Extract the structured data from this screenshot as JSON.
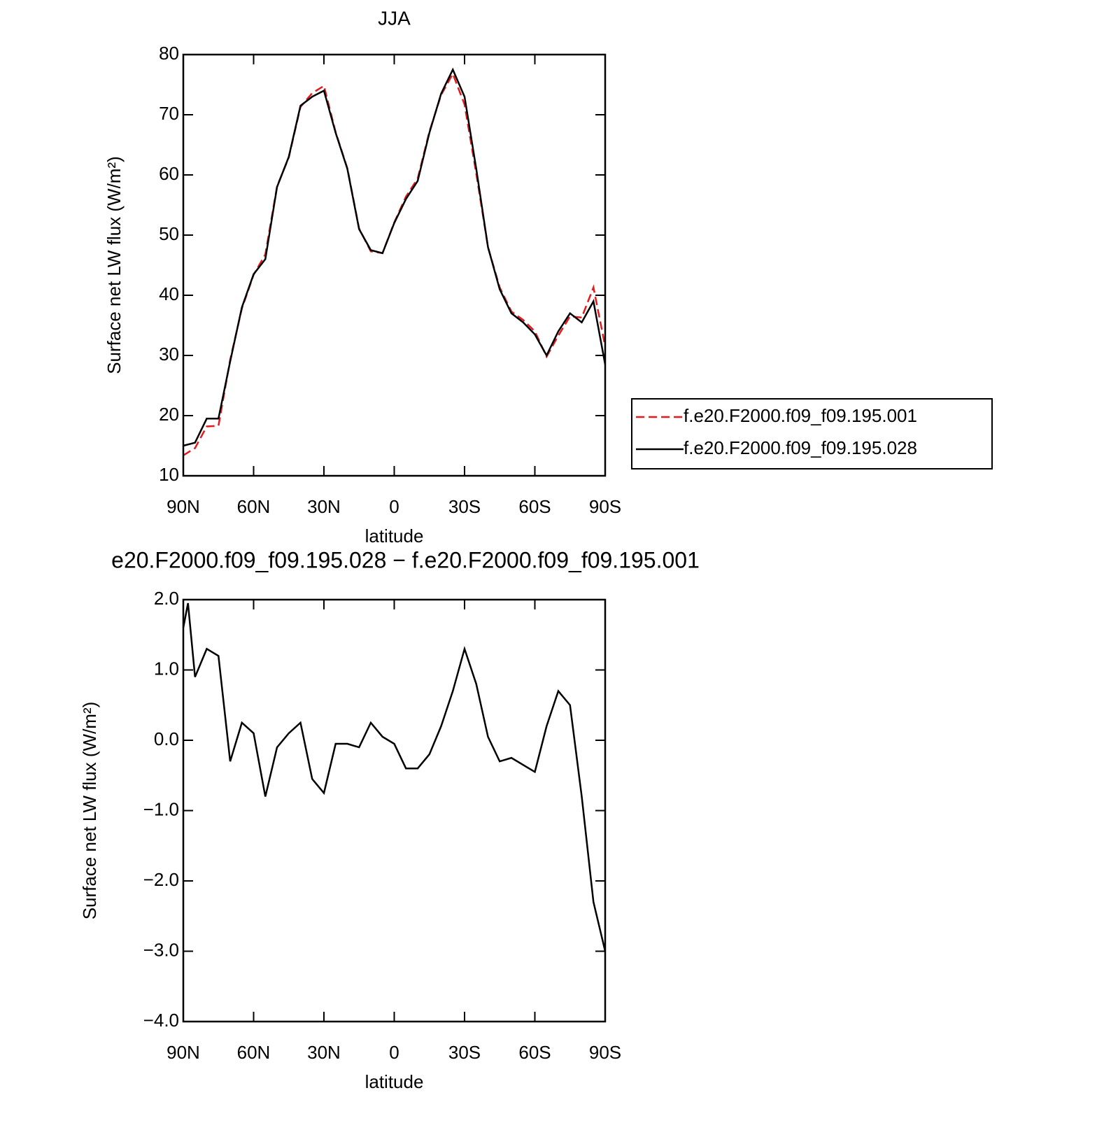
{
  "chart_data": [
    {
      "type": "line",
      "title": "JJA",
      "xlabel": "latitude",
      "ylabel": "Surface net LW flux (W/m²)",
      "x": [
        90,
        85,
        80,
        75,
        70,
        65,
        60,
        55,
        50,
        45,
        40,
        35,
        30,
        25,
        20,
        15,
        10,
        5,
        0,
        -5,
        -10,
        -15,
        -20,
        -25,
        -30,
        -35,
        -40,
        -45,
        -50,
        -55,
        -60,
        -65,
        -70,
        -75,
        -80,
        -85,
        -90
      ],
      "xlim": [
        90,
        -90
      ],
      "xticks": [
        {
          "value": 90,
          "label": "90N"
        },
        {
          "value": 60,
          "label": "60N"
        },
        {
          "value": 30,
          "label": "30N"
        },
        0,
        {
          "value": -30,
          "label": "30S"
        },
        {
          "value": -60,
          "label": "60S"
        },
        {
          "value": -90,
          "label": "90S"
        }
      ],
      "ylim": [
        10,
        80
      ],
      "yticks": [
        10,
        20,
        30,
        40,
        50,
        60,
        70,
        80
      ],
      "legend": "right",
      "series": [
        {
          "name": "f.e20.F2000.f09_f09.195.001",
          "color": "#e41a1c",
          "dashed": true,
          "values": [
            13.4,
            14.6,
            18.2,
            18.3,
            29.3,
            37.8,
            43.4,
            46.8,
            58.1,
            62.9,
            71.3,
            73.6,
            74.8,
            67.1,
            61.1,
            51.1,
            47.3,
            47.0,
            52.1,
            56.4,
            59.4,
            67.2,
            73.3,
            76.8,
            71.7,
            60.2,
            48.0,
            41.3,
            37.3,
            35.9,
            34.0,
            29.8,
            33.3,
            36.5,
            36.3,
            41.3,
            31.5
          ]
        },
        {
          "name": "f.e20.F2000.f09_f09.195.028",
          "color": "#000000",
          "dashed": false,
          "values": [
            15.0,
            15.5,
            19.5,
            19.5,
            29.0,
            38.0,
            43.5,
            46.0,
            58.0,
            63.0,
            71.5,
            73.0,
            74.0,
            67.0,
            61.0,
            51.0,
            47.5,
            47.0,
            52.0,
            56.0,
            59.0,
            67.0,
            73.5,
            77.5,
            73.0,
            61.0,
            48.0,
            41.0,
            37.0,
            35.5,
            33.5,
            30.0,
            34.0,
            37.0,
            35.5,
            39.0,
            28.5
          ]
        }
      ]
    },
    {
      "type": "line",
      "title": "e20.F2000.f09_f09.195.028 − f.e20.F2000.f09_f09.195.001",
      "xlabel": "latitude",
      "ylabel": "Surface net LW flux (W/m²)",
      "x": [
        90,
        88,
        85,
        80,
        75,
        70,
        65,
        60,
        55,
        50,
        45,
        40,
        35,
        30,
        25,
        20,
        15,
        10,
        5,
        0,
        -5,
        -10,
        -15,
        -20,
        -25,
        -30,
        -35,
        -40,
        -45,
        -50,
        -55,
        -60,
        -65,
        -70,
        -75,
        -80,
        -85,
        -90
      ],
      "xlim": [
        90,
        -90
      ],
      "xticks": [
        {
          "value": 90,
          "label": "90N"
        },
        {
          "value": 60,
          "label": "60N"
        },
        {
          "value": 30,
          "label": "30N"
        },
        0,
        {
          "value": -30,
          "label": "30S"
        },
        {
          "value": -60,
          "label": "60S"
        },
        {
          "value": -90,
          "label": "90S"
        }
      ],
      "ylim": [
        -4,
        2
      ],
      "yticks": [
        {
          "value": -4,
          "label": "−4.0"
        },
        {
          "value": -3,
          "label": "−3.0"
        },
        {
          "value": -2,
          "label": "−2.0"
        },
        {
          "value": -1,
          "label": "−1.0"
        },
        {
          "value": 0,
          "label": "0.0"
        },
        {
          "value": 1,
          "label": "1.0"
        },
        {
          "value": 2,
          "label": "2.0"
        }
      ],
      "series": [
        {
          "color": "#000000",
          "dashed": false,
          "values": [
            1.6,
            1.95,
            0.9,
            1.3,
            1.2,
            -0.3,
            0.25,
            0.1,
            -0.8,
            -0.1,
            0.1,
            0.25,
            -0.55,
            -0.75,
            -0.05,
            -0.05,
            -0.1,
            0.25,
            0.05,
            -0.05,
            -0.4,
            -0.4,
            -0.2,
            0.2,
            0.7,
            1.3,
            0.8,
            0.05,
            -0.3,
            -0.25,
            -0.35,
            -0.45,
            0.2,
            0.7,
            0.5,
            -0.8,
            -2.3,
            -3.0
          ]
        }
      ]
    }
  ]
}
